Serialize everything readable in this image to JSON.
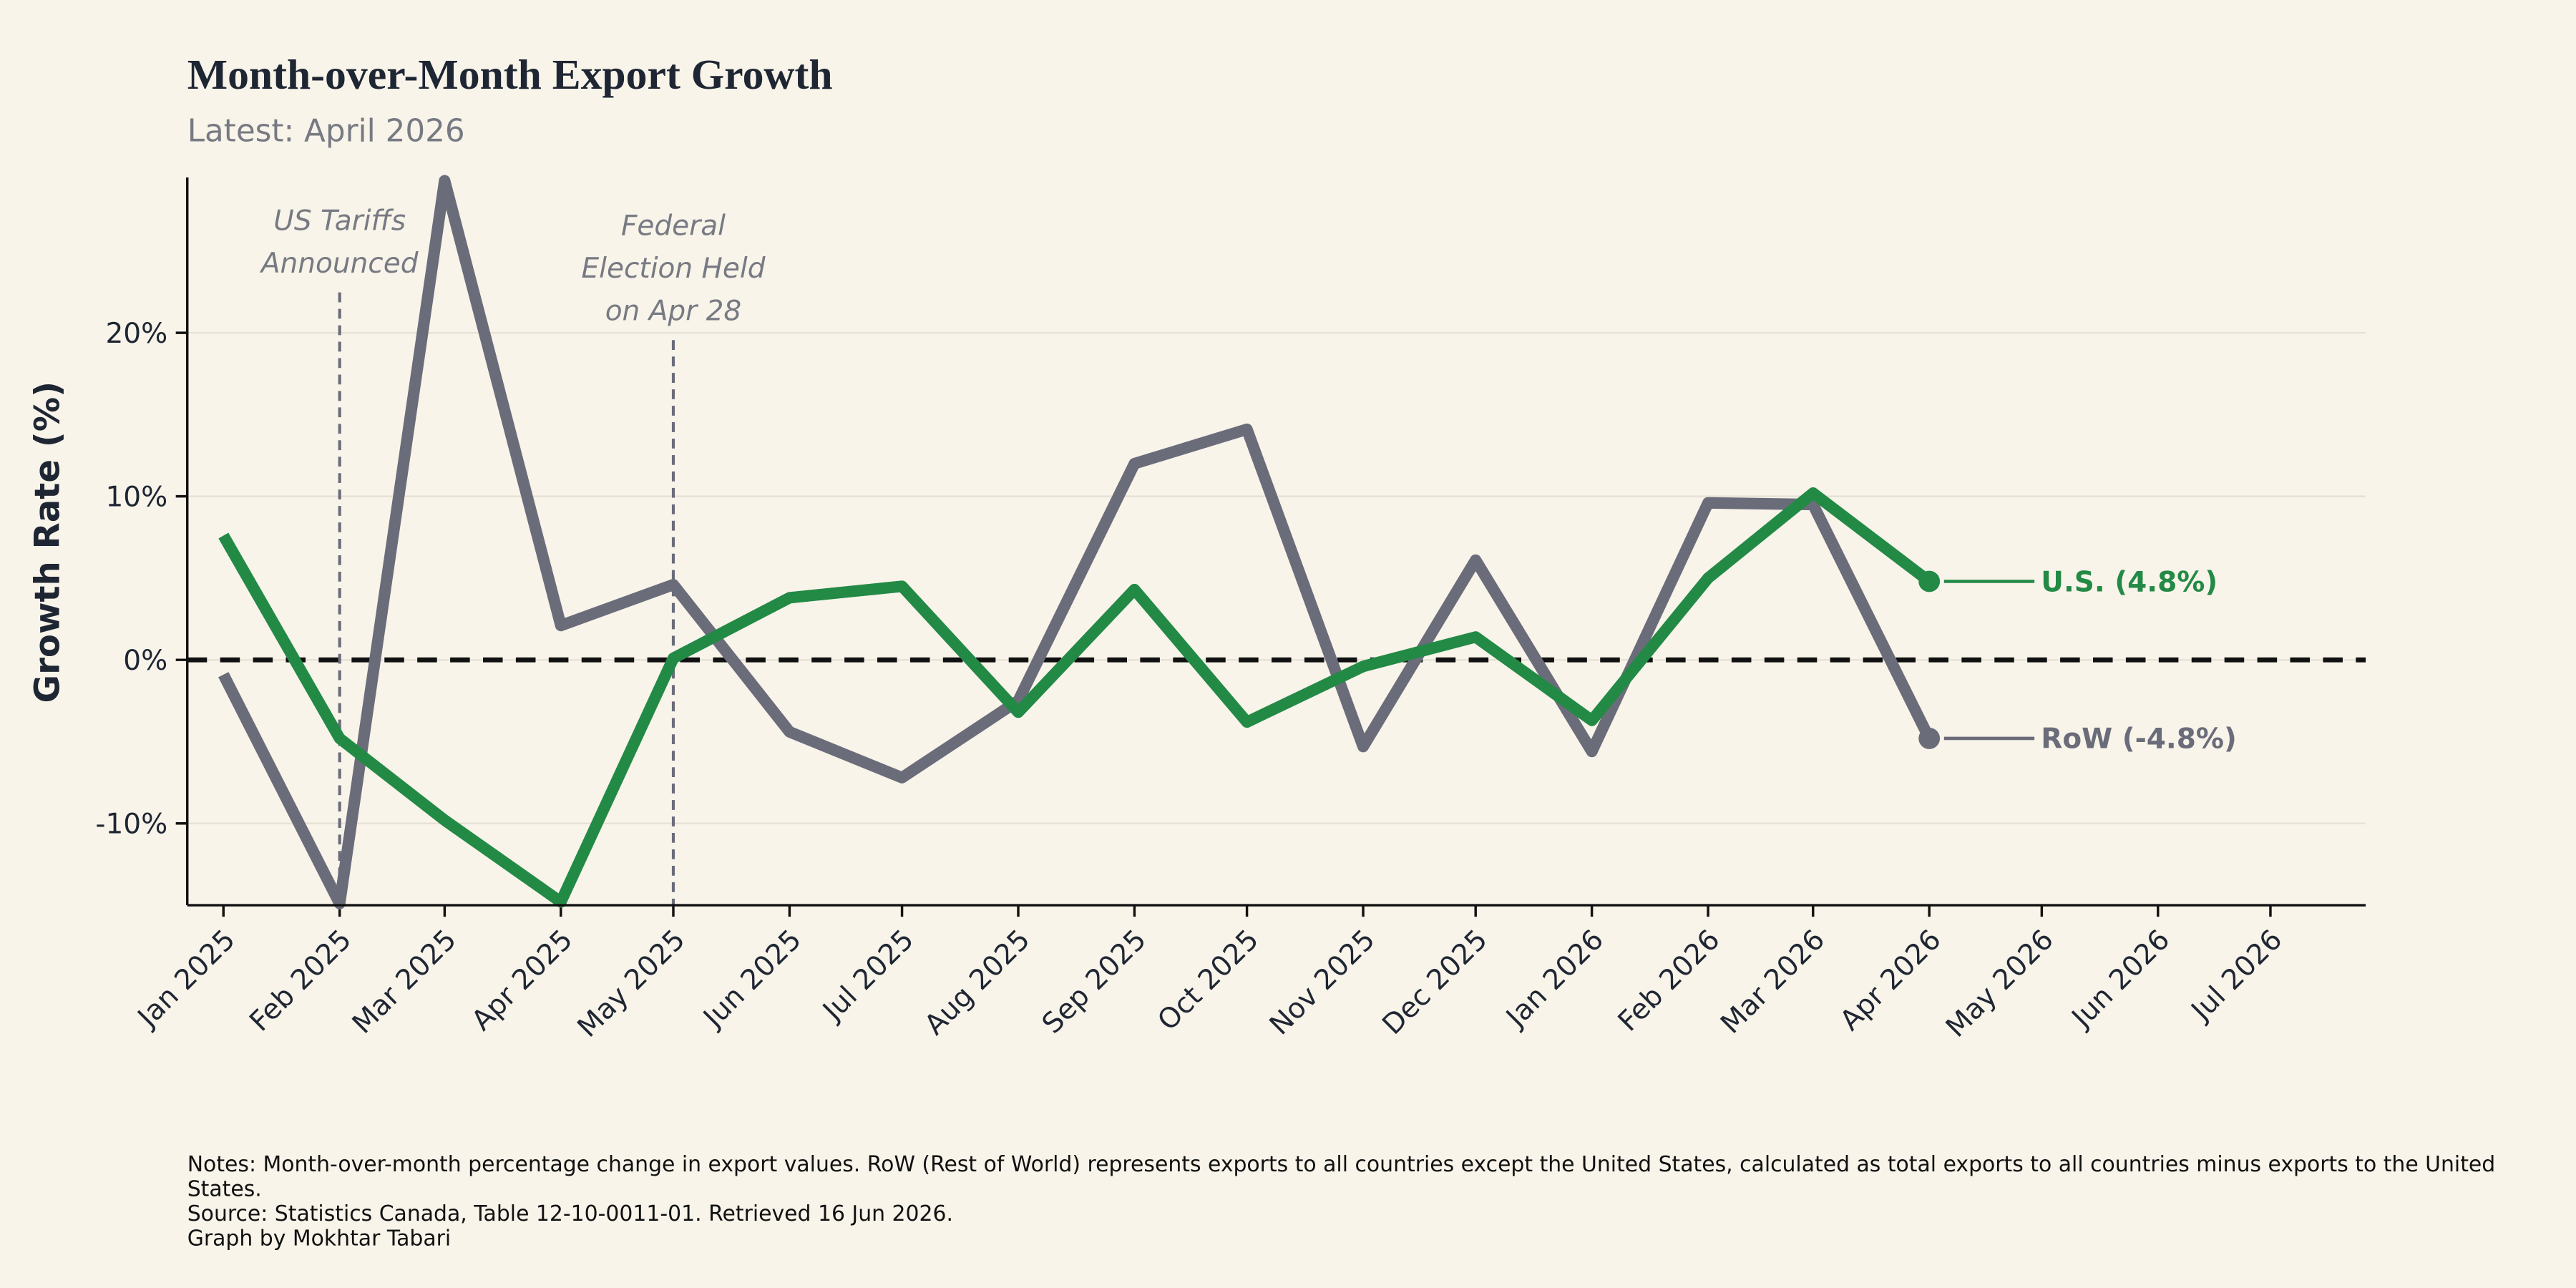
{
  "chart_data": {
    "type": "line",
    "title": "Month-over-Month Export Growth",
    "subtitle": "Latest: April 2026",
    "y_label": "Growth Rate (%)",
    "x": [
      "2025-01",
      "2025-02",
      "2025-03",
      "2025-04",
      "2025-05",
      "2025-06",
      "2025-07",
      "2025-08",
      "2025-09",
      "2025-10",
      "2025-11",
      "2025-12",
      "2026-01",
      "2026-02",
      "2026-03",
      "2026-04"
    ],
    "series": [
      {
        "name": "U.S. (4.8%)",
        "color": "#238a46",
        "values": [
          7.6,
          -4.8,
          -9.8,
          -14.8,
          0.1,
          3.8,
          4.5,
          -3.2,
          4.3,
          -3.8,
          -0.4,
          1.4,
          -3.7,
          5.0,
          10.2,
          4.8
        ]
      },
      {
        "name": "RoW (-4.8%)",
        "color": "#6b6c7a",
        "values": [
          -0.9,
          -14.9,
          29.3,
          2.1,
          4.6,
          -4.4,
          -7.2,
          -2.5,
          12.0,
          14.1,
          -5.3,
          6.1,
          -5.6,
          9.6,
          9.5,
          -4.8
        ]
      }
    ],
    "xlim": [
      "2025-01",
      "2026-07"
    ],
    "xticks": [
      {
        "value": "2025-01",
        "label": "Jan 2025"
      },
      {
        "value": "2025-02",
        "label": "Feb 2025"
      },
      {
        "value": "2025-03",
        "label": "Mar 2025"
      },
      {
        "value": "2025-04",
        "label": "Apr 2025"
      },
      {
        "value": "2025-05",
        "label": "May 2025"
      },
      {
        "value": "2025-06",
        "label": "Jun 2025"
      },
      {
        "value": "2025-07",
        "label": "Jul 2025"
      },
      {
        "value": "2025-08",
        "label": "Aug 2025"
      },
      {
        "value": "2025-09",
        "label": "Sep 2025"
      },
      {
        "value": "2025-10",
        "label": "Oct 2025"
      },
      {
        "value": "2025-11",
        "label": "Nov 2025"
      },
      {
        "value": "2025-12",
        "label": "Dec 2025"
      },
      {
        "value": "2026-01",
        "label": "Jan 2026"
      },
      {
        "value": "2026-02",
        "label": "Feb 2026"
      },
      {
        "value": "2026-03",
        "label": "Mar 2026"
      },
      {
        "value": "2026-04",
        "label": "Apr 2026"
      },
      {
        "value": "2026-05",
        "label": "May 2026"
      },
      {
        "value": "2026-06",
        "label": "Jun 2026"
      },
      {
        "value": "2026-07",
        "label": "Jul 2026"
      }
    ],
    "ylim": [
      -15,
      29.5
    ],
    "yticks": [
      {
        "value": -10,
        "label": "-10%"
      },
      {
        "value": 0,
        "label": "0%"
      },
      {
        "value": 10,
        "label": "10%"
      },
      {
        "value": 20,
        "label": "20%"
      }
    ],
    "grid": true,
    "zero_line": true,
    "annotations": [
      {
        "x": "2025-02",
        "text": [
          "US Tariffs",
          "Announced"
        ]
      },
      {
        "x": "2025-05",
        "text": [
          "Federal",
          "Election Held",
          "on Apr 28"
        ]
      }
    ],
    "notes": [
      "Notes: Month-over-month percentage change in export values. RoW (Rest of World) represents exports to all countries except the United States, calculated as total exports to all countries minus exports to the United States.",
      "Source: Statistics Canada, Table 12-10-0011-01. Retrieved 16 Jun 2026.",
      "Graph by Mokhtar Tabari"
    ]
  }
}
